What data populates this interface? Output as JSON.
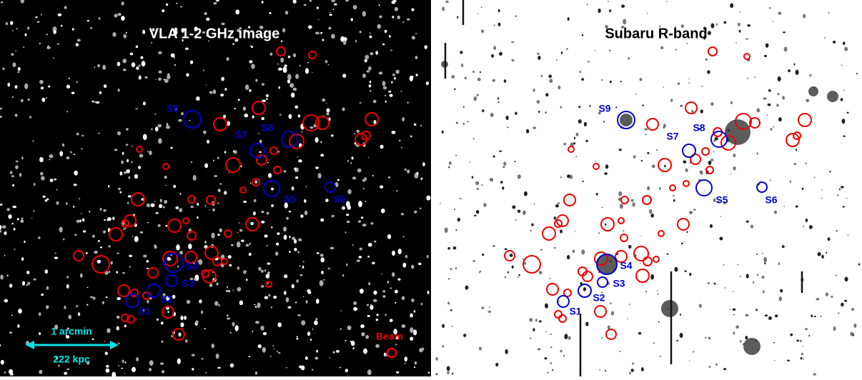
{
  "panels": [
    {
      "title": "VLA 1-2 GHz image",
      "sources": [
        "S1",
        "S2",
        "S3",
        "S4",
        "S5",
        "S6",
        "S7",
        "S8",
        "S9"
      ]
    },
    {
      "title": "Subaru R-band",
      "sources": [
        "S1",
        "S2",
        "S3",
        "S4",
        "S5",
        "S6",
        "S7",
        "S8",
        "S9"
      ]
    }
  ],
  "scale_bar": {
    "angular": "1 arcmin",
    "physical": "222 kpc"
  },
  "beam_label": "Beam"
}
